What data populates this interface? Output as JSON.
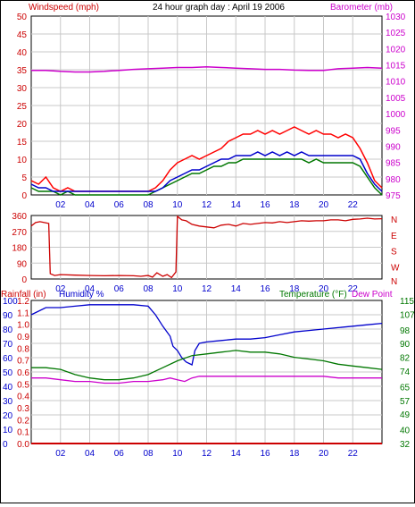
{
  "header": {
    "wind_label": "Windspeed (mph)",
    "title": "24 hour graph day : April 19 2006",
    "baro_label": "Barometer (mb)"
  },
  "labels": {
    "rain": "Rainfall (in)",
    "humidity": "Humidity %",
    "temperature": "Temperature (°F)",
    "dewpoint": "Dew Point"
  },
  "colors": {
    "wind": "#ff0000",
    "gust": "#ff0000",
    "avg": "#0000cc",
    "baro": "#cc00cc",
    "dir": "#cc0000",
    "humidity": "#0000cc",
    "temperature": "#007700",
    "dewpoint": "#cc00cc",
    "rain": "#cc0000",
    "grid": "#c8c8c8"
  },
  "x_ticks": [
    "02",
    "04",
    "06",
    "08",
    "10",
    "12",
    "14",
    "16",
    "18",
    "20",
    "22"
  ],
  "chart_data": [
    {
      "type": "line",
      "title": "24 hour graph day : April 19 2006",
      "xlabel": "",
      "x_ticks": [
        "02",
        "04",
        "06",
        "08",
        "10",
        "12",
        "14",
        "16",
        "18",
        "20",
        "22"
      ],
      "ylabel": "Windspeed (mph)",
      "ylim": [
        0,
        50
      ],
      "y_ticks": [
        0,
        5,
        10,
        15,
        20,
        25,
        30,
        35,
        40,
        45,
        50
      ],
      "y2label": "Barometer (mb)",
      "y2lim": [
        975,
        1030
      ],
      "y2_ticks": [
        975,
        980,
        985,
        990,
        995,
        1000,
        1005,
        1010,
        1015,
        1020,
        1025,
        1030
      ],
      "series": [
        {
          "axis": "left",
          "x": [
            0,
            0.5,
            1,
            1.5,
            2,
            2.5,
            3,
            3.5,
            4,
            4.5,
            5,
            5.5,
            6,
            6.5,
            7,
            7.5,
            8,
            8.5,
            9,
            9.5,
            10,
            10.5,
            11,
            11.5,
            12,
            12.5,
            13,
            13.5,
            14,
            14.5,
            15,
            15.5,
            16,
            16.5,
            17,
            17.5,
            18,
            18.5,
            19,
            19.5,
            20,
            20.5,
            21,
            21.5,
            22,
            22.5,
            23,
            23.5,
            24
          ],
          "values": [
            4,
            3,
            5,
            2,
            1,
            2,
            1,
            1,
            1,
            1,
            1,
            1,
            1,
            1,
            1,
            1,
            1,
            2,
            4,
            7,
            9,
            10,
            11,
            10,
            11,
            12,
            13,
            15,
            16,
            17,
            17,
            18,
            17,
            18,
            17,
            18,
            19,
            18,
            17,
            18,
            17,
            17,
            16,
            17,
            16,
            13,
            9,
            4,
            2
          ]
        },
        {
          "axis": "left",
          "x": [
            0,
            0.5,
            1,
            1.5,
            2,
            2.5,
            3,
            3.5,
            4,
            4.5,
            5,
            5.5,
            6,
            6.5,
            7,
            7.5,
            8,
            8.5,
            9,
            9.5,
            10,
            10.5,
            11,
            11.5,
            12,
            12.5,
            13,
            13.5,
            14,
            14.5,
            15,
            15.5,
            16,
            16.5,
            17,
            17.5,
            18,
            18.5,
            19,
            19.5,
            20,
            20.5,
            21,
            21.5,
            22,
            22.5,
            23,
            23.5,
            24
          ],
          "values": [
            2,
            1,
            1,
            1,
            0,
            1,
            0,
            0,
            0,
            0,
            0,
            0,
            0,
            0,
            0,
            0,
            0,
            1,
            2,
            3,
            4,
            5,
            6,
            6,
            7,
            8,
            8,
            9,
            9,
            10,
            10,
            10,
            10,
            10,
            10,
            10,
            10,
            10,
            9,
            10,
            9,
            9,
            9,
            9,
            9,
            8,
            5,
            2,
            0
          ]
        },
        {
          "axis": "left",
          "x": [
            0,
            0.5,
            1,
            1.5,
            2,
            2.5,
            3,
            3.5,
            4,
            4.5,
            5,
            5.5,
            6,
            6.5,
            7,
            7.5,
            8,
            8.5,
            9,
            9.5,
            10,
            10.5,
            11,
            11.5,
            12,
            12.5,
            13,
            13.5,
            14,
            14.5,
            15,
            15.5,
            16,
            16.5,
            17,
            17.5,
            18,
            18.5,
            19,
            19.5,
            20,
            20.5,
            21,
            21.5,
            22,
            22.5,
            23,
            23.5,
            24
          ],
          "values": [
            3,
            2,
            2,
            1,
            1,
            1,
            1,
            1,
            1,
            1,
            1,
            1,
            1,
            1,
            1,
            1,
            1,
            1,
            2,
            4,
            5,
            6,
            7,
            7,
            8,
            9,
            10,
            10,
            11,
            11,
            11,
            12,
            11,
            12,
            11,
            12,
            11,
            12,
            11,
            11,
            11,
            11,
            11,
            11,
            11,
            10,
            6,
            3,
            1
          ]
        },
        {
          "axis": "right",
          "x": [
            0,
            1,
            2,
            3,
            4,
            5,
            6,
            7,
            8,
            9,
            10,
            11,
            12,
            13,
            14,
            15,
            16,
            17,
            18,
            19,
            20,
            21,
            22,
            23,
            24
          ],
          "values": [
            1013.3,
            1013.3,
            1013.0,
            1012.8,
            1012.8,
            1013.0,
            1013.3,
            1013.6,
            1013.8,
            1014.0,
            1014.2,
            1014.2,
            1014.4,
            1014.2,
            1014.0,
            1013.8,
            1013.6,
            1013.6,
            1013.4,
            1013.3,
            1013.3,
            1013.8,
            1014.0,
            1014.2,
            1014.0
          ]
        }
      ]
    },
    {
      "type": "line",
      "ylim": [
        0,
        360
      ],
      "y_ticks": [
        0,
        90,
        180,
        270,
        360
      ],
      "y2_ticks": [
        "N",
        "E",
        "S",
        "W",
        "N"
      ],
      "x_ticks": [
        "02",
        "04",
        "06",
        "08",
        "10",
        "12",
        "14",
        "16",
        "18",
        "20",
        "22"
      ],
      "series": [
        {
          "x": [
            0,
            0.3,
            0.6,
            0.9,
            1.2,
            1.3,
            1.6,
            2,
            3,
            4,
            5,
            6,
            7,
            7.5,
            8,
            8.3,
            8.6,
            9,
            9.3,
            9.6,
            9.9,
            10,
            10.3,
            10.6,
            11,
            11.5,
            12,
            12.5,
            13,
            13.5,
            14,
            14.5,
            15,
            15.5,
            16,
            16.5,
            17,
            17.5,
            18,
            18.5,
            19,
            19.5,
            20,
            20.5,
            21,
            21.5,
            22,
            22.5,
            23,
            23.5,
            24
          ],
          "values": [
            300,
            320,
            325,
            320,
            315,
            30,
            20,
            25,
            22,
            20,
            18,
            20,
            18,
            15,
            20,
            10,
            35,
            15,
            25,
            8,
            40,
            355,
            335,
            330,
            310,
            300,
            295,
            290,
            305,
            310,
            300,
            315,
            310,
            315,
            320,
            318,
            325,
            320,
            325,
            330,
            328,
            330,
            330,
            335,
            335,
            330,
            338,
            340,
            345,
            340,
            342
          ]
        }
      ]
    },
    {
      "type": "line",
      "ylabel": "Rainfall (in)",
      "ylim": [
        0,
        1.2
      ],
      "y_ticks": [
        "0.0",
        "0.1",
        "0.2",
        "0.3",
        "0.4",
        "0.5",
        "0.6",
        "0.7",
        "0.8",
        "0.9",
        "1.0",
        "1.1",
        "1.2"
      ],
      "humidity_ticks": [
        0,
        10,
        20,
        30,
        40,
        50,
        60,
        70,
        80,
        90,
        100
      ],
      "y2label": "Temperature (°F)",
      "y2lim": [
        32,
        115
      ],
      "y2_ticks": [
        32,
        40,
        49,
        57,
        65,
        74,
        82,
        90,
        98,
        107,
        115
      ],
      "x_ticks": [
        "02",
        "04",
        "06",
        "08",
        "10",
        "12",
        "14",
        "16",
        "18",
        "20",
        "22"
      ],
      "series": [
        {
          "axis": "humidity",
          "x": [
            0,
            1,
            2,
            3,
            4,
            5,
            6,
            7,
            8,
            8.5,
            9,
            9.5,
            9.7,
            10,
            10.3,
            10.6,
            11,
            11.2,
            11.5,
            12,
            13,
            14,
            15,
            16,
            17,
            18,
            19,
            20,
            21,
            22,
            23,
            24
          ],
          "values": [
            90,
            95,
            95,
            96,
            97,
            97,
            97,
            97,
            96,
            90,
            82,
            75,
            68,
            65,
            60,
            57,
            55,
            65,
            70,
            71,
            72,
            73,
            73,
            74,
            76,
            78,
            79,
            80,
            81,
            82,
            83,
            84
          ]
        },
        {
          "axis": "temperature",
          "x": [
            0,
            1,
            2,
            3,
            4,
            5,
            6,
            7,
            8,
            9,
            10,
            11,
            12,
            13,
            14,
            15,
            16,
            17,
            18,
            19,
            20,
            21,
            22,
            23,
            24
          ],
          "values": [
            76,
            76,
            75,
            72,
            70,
            69,
            69,
            70,
            72,
            76,
            80,
            83,
            84,
            85,
            86,
            85,
            85,
            84,
            82,
            81,
            80,
            78,
            77,
            76,
            75
          ]
        },
        {
          "axis": "temperature",
          "x": [
            0,
            1,
            2,
            3,
            4,
            5,
            6,
            7,
            8,
            9,
            9.5,
            10,
            10.5,
            11,
            11.5,
            12,
            13,
            14,
            15,
            16,
            17,
            18,
            19,
            20,
            21,
            22,
            23,
            24
          ],
          "values": [
            70,
            70,
            69,
            68,
            68,
            67,
            67,
            68,
            68,
            69,
            70,
            69,
            68,
            70,
            71,
            71,
            71,
            71,
            71,
            71,
            71,
            71,
            71,
            71,
            70,
            70,
            70,
            70
          ]
        },
        {
          "axis": "rain",
          "x": [
            0,
            24
          ],
          "values": [
            0.0,
            0.0
          ]
        }
      ]
    }
  ]
}
